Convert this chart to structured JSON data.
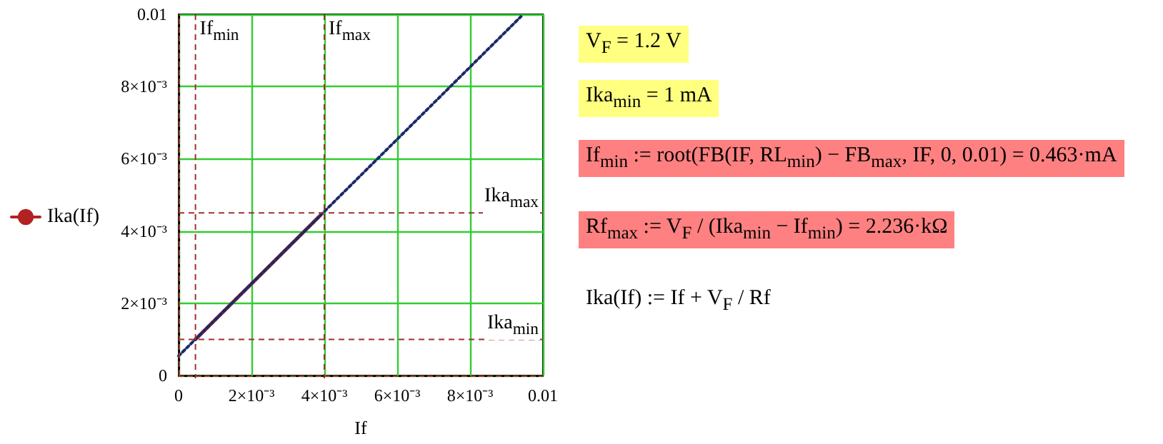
{
  "chart_data": {
    "type": "line",
    "xlabel": "If",
    "series": [
      {
        "name": "Ika(If)",
        "color": "#b22222",
        "x": [
          0.000463,
          0.0039
        ],
        "values": [
          0.001,
          0.00444
        ],
        "line_style": "solid"
      },
      {
        "color": "#1a2a6c",
        "x": [
          0,
          0.0094
        ],
        "values": [
          0.00054,
          0.00994
        ],
        "line_style": "dotted"
      }
    ],
    "xlim": [
      0,
      0.01
    ],
    "ylim": [
      0,
      0.01
    ],
    "xticks": [
      0,
      {
        "value": 0.002,
        "label": "2×10⁻³"
      },
      {
        "value": 0.004,
        "label": "4×10⁻³"
      },
      {
        "value": 0.006,
        "label": "6×10⁻³"
      },
      {
        "value": 0.008,
        "label": "8×10⁻³"
      },
      0.01
    ],
    "yticks": [
      0,
      {
        "value": 0.002,
        "label": "2×10⁻³"
      },
      {
        "value": 0.004,
        "label": "4×10⁻³"
      },
      {
        "value": 0.006,
        "label": "6×10⁻³"
      },
      {
        "value": 0.008,
        "label": "8×10⁻³"
      },
      0.01
    ],
    "ref_lines": [
      {
        "axis": "x",
        "value": 0.000463,
        "label": "If$_{min}$",
        "color": "#a03030",
        "line_style": "dashed"
      },
      {
        "axis": "x",
        "value": 0.004,
        "label": "If$_{max}$",
        "color": "#a03030",
        "line_style": "dashed"
      },
      {
        "axis": "y",
        "value": 0.0045,
        "label": "Ika$_{max}$",
        "color": "#a03030",
        "line_style": "dashed"
      },
      {
        "axis": "y",
        "value": 0.001,
        "label": "Ika$_{min}$",
        "color": "#a03030",
        "line_style": "dashed"
      }
    ],
    "annotations": [
      "V$_{F}$ = 1.2 V",
      "Ika$_{min}$ = 1 mA",
      "If$_{min}$ := root(FB(IF, RL$_{min}$) − FB$_{max}$, IF, 0, 0.01) = 0.463·mA",
      "Rf$_{max}$ := V$_{F}$ / (Ika$_{min}$ − If$_{min}$) = 2.236·kΩ",
      "Ika(If) := If + V$_{F}$ / Rf"
    ],
    "grid": true,
    "legend": "left",
    "marker": "none"
  }
}
